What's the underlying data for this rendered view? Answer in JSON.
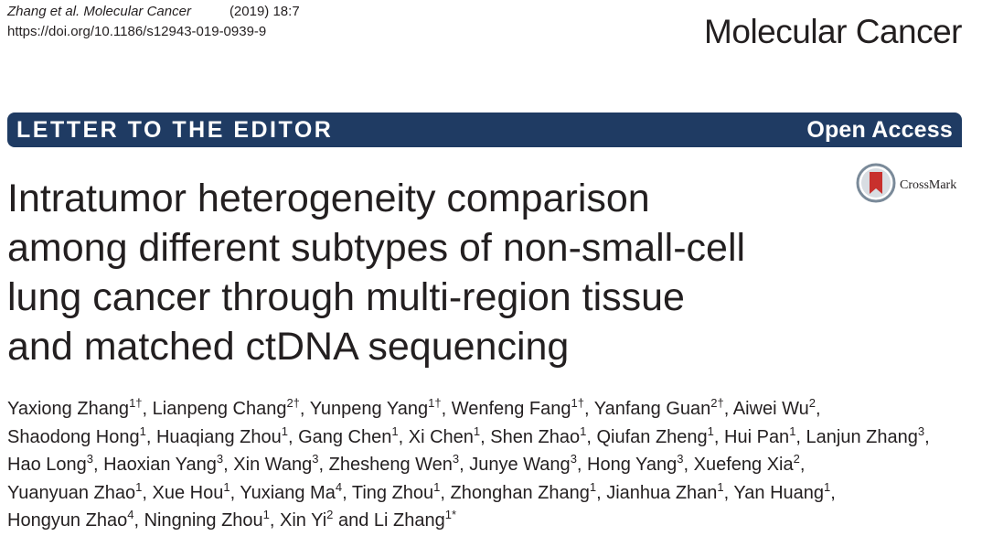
{
  "header": {
    "citation_authors": "Zhang et al. Molecular Cancer",
    "citation_year_volume": "(2019) 18:7",
    "doi": "https://doi.org/10.1186/s12943-019-0939-9",
    "journal_name": "Molecular Cancer"
  },
  "banner": {
    "article_type": "LETTER TO THE EDITOR",
    "access": "Open Access",
    "color": "#1f3b63"
  },
  "crossmark": {
    "label": "CrossMark",
    "icon": "crossmark-icon"
  },
  "title_lines": [
    "Intratumor heterogeneity comparison",
    "among different subtypes of non-small-cell",
    "lung cancer through multi-region tissue",
    "and matched ctDNA sequencing"
  ],
  "author_lines": [
    [
      {
        "name": "Yaxiong Zhang",
        "aff": "1†"
      },
      {
        "name": "Lianpeng Chang",
        "aff": "2†"
      },
      {
        "name": "Yunpeng Yang",
        "aff": "1†"
      },
      {
        "name": "Wenfeng Fang",
        "aff": "1†"
      },
      {
        "name": "Yanfang Guan",
        "aff": "2†"
      },
      {
        "name": "Aiwei Wu",
        "aff": "2"
      }
    ],
    [
      {
        "name": "Shaodong Hong",
        "aff": "1"
      },
      {
        "name": "Huaqiang Zhou",
        "aff": "1"
      },
      {
        "name": "Gang Chen",
        "aff": "1"
      },
      {
        "name": "Xi Chen",
        "aff": "1"
      },
      {
        "name": "Shen Zhao",
        "aff": "1"
      },
      {
        "name": "Qiufan Zheng",
        "aff": "1"
      },
      {
        "name": "Hui Pan",
        "aff": "1"
      },
      {
        "name": "Lanjun Zhang",
        "aff": "3"
      }
    ],
    [
      {
        "name": "Hao Long",
        "aff": "3"
      },
      {
        "name": "Haoxian Yang",
        "aff": "3"
      },
      {
        "name": "Xin Wang",
        "aff": "3"
      },
      {
        "name": "Zhesheng Wen",
        "aff": "3"
      },
      {
        "name": "Junye Wang",
        "aff": "3"
      },
      {
        "name": "Hong Yang",
        "aff": "3"
      },
      {
        "name": "Xuefeng Xia",
        "aff": "2"
      }
    ],
    [
      {
        "name": "Yuanyuan Zhao",
        "aff": "1"
      },
      {
        "name": "Xue Hou",
        "aff": "1"
      },
      {
        "name": "Yuxiang Ma",
        "aff": "4"
      },
      {
        "name": "Ting Zhou",
        "aff": "1"
      },
      {
        "name": "Zhonghan Zhang",
        "aff": "1"
      },
      {
        "name": "Jianhua Zhan",
        "aff": "1"
      },
      {
        "name": "Yan Huang",
        "aff": "1"
      }
    ],
    [
      {
        "name": "Hongyun Zhao",
        "aff": "4"
      },
      {
        "name": "Ningning Zhou",
        "aff": "1"
      },
      {
        "name": "Xin Yi",
        "aff": "2"
      },
      {
        "name": "and Li Zhang",
        "aff": "1*"
      }
    ]
  ]
}
